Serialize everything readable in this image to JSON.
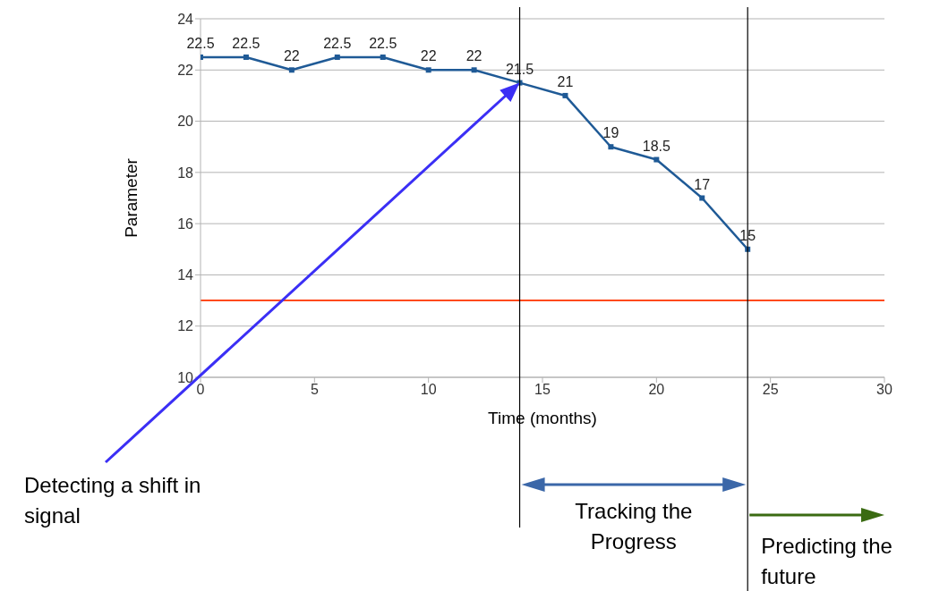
{
  "chart_data": {
    "type": "line",
    "xlabel": "Time (months)",
    "ylabel": "Parameter",
    "x": [
      0,
      2,
      4,
      6,
      8,
      10,
      12,
      14,
      16,
      18,
      20,
      22,
      24
    ],
    "series": [
      {
        "color": "#1f5a96",
        "values": [
          22.5,
          22.5,
          22,
          22.5,
          22.5,
          22,
          22,
          21.5,
          21,
          19,
          18.5,
          17,
          15
        ]
      }
    ],
    "xlim": [
      0,
      30
    ],
    "xticks": [
      0,
      5,
      10,
      15,
      20,
      25,
      30
    ],
    "ylim": [
      10,
      24
    ],
    "yticks": [
      10,
      12,
      14,
      16,
      18,
      20,
      22,
      24
    ],
    "grid": "y",
    "marker": "square",
    "line_style": "solid",
    "data_labels": true,
    "legend": false,
    "ref_lines": [
      {
        "axis": "y",
        "value": 13,
        "label": null,
        "color": "#ff4a1c"
      },
      {
        "axis": "x",
        "value": 14,
        "label": null,
        "color": "#000000"
      },
      {
        "axis": "x",
        "value": 24,
        "label": null,
        "color": "#000000"
      }
    ],
    "annotations": [
      "Detecting a shift in signal",
      "Tracking the Progress",
      "Predicting the future"
    ]
  }
}
